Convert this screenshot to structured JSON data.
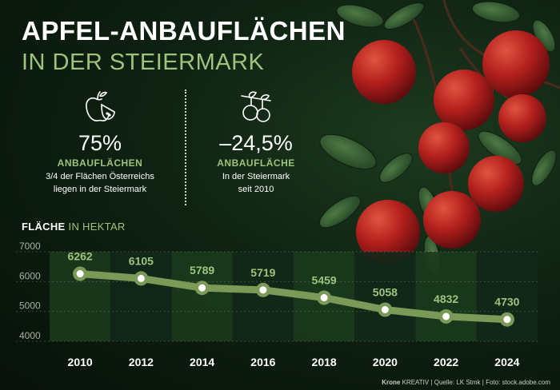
{
  "title": {
    "line1": "APFEL-ANBAUFLÄCHEN",
    "line2": "IN DER STEIERMARK"
  },
  "stats": [
    {
      "icon": "apple-icon",
      "value": "75%",
      "label": "ANBAUFLÄCHEN",
      "desc1": "3/4 der Flächen Österreichs",
      "desc2": "liegen in der Steiermark"
    },
    {
      "icon": "apple-branch-icon",
      "value": "–24,5%",
      "label": "ANBAUFLÄCHE",
      "desc1": "In der Steiermark",
      "desc2": "seit 2010"
    }
  ],
  "chart_title": {
    "bold": "FLÄCHE",
    "light": "IN HEKTAR"
  },
  "chart_data": {
    "type": "line",
    "x": [
      "2010",
      "2012",
      "2014",
      "2016",
      "2018",
      "2020",
      "2022",
      "2024"
    ],
    "series": [
      {
        "values": [
          6262,
          6105,
          5789,
          5719,
          5459,
          5058,
          4832,
          4730
        ]
      }
    ],
    "y_ticks": [
      4000,
      5000,
      6000,
      7000
    ],
    "ylim": [
      4000,
      7000
    ],
    "data_labels": true,
    "colors": {
      "line": "#7b9a58",
      "marker_fill": "#ffffff",
      "label": "#9ec37c",
      "band_a": "#1b3a1c",
      "band_b": "#12281a"
    }
  },
  "footer": {
    "brand": "Krone",
    "rest": " KREATIV | Quelle: LK Stmk | Foto: stock.adobe.com"
  }
}
